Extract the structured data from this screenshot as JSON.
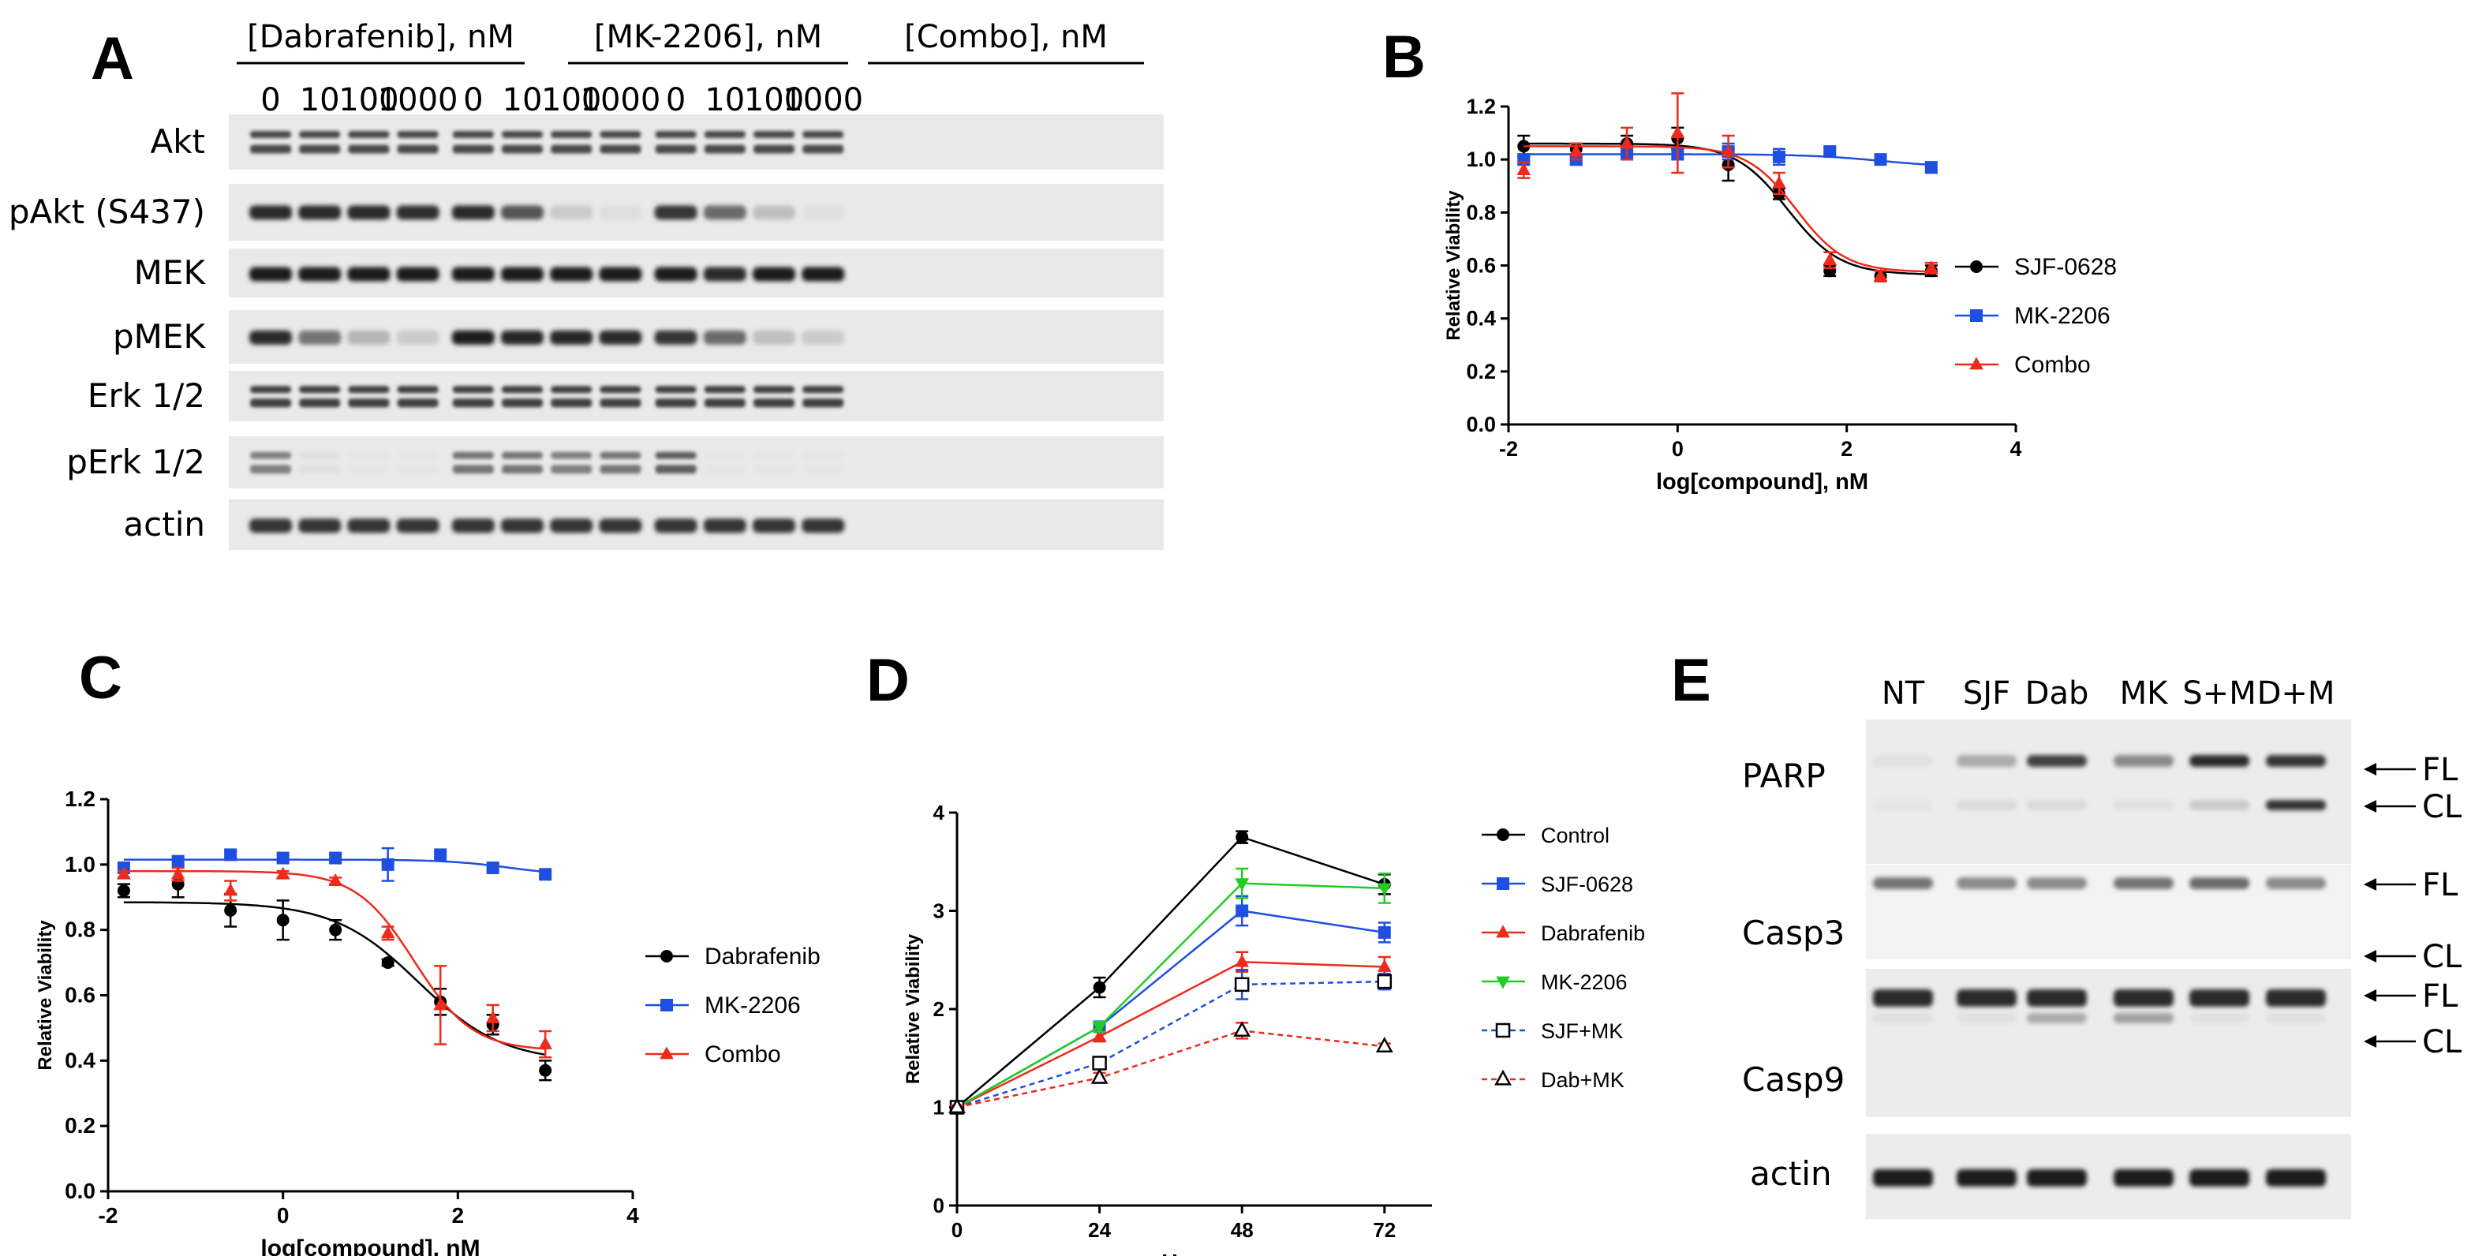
{
  "panelA": {
    "letter": "A",
    "groups": [
      "[Dabrafenib], nM",
      "[MK-2206], nM",
      "[Combo], nM"
    ],
    "doses": [
      "0",
      "10",
      "100",
      "1000"
    ],
    "rows": [
      {
        "label": "Akt",
        "intensity": [
          0.75,
          0.75,
          0.75,
          0.75,
          0.75,
          0.75,
          0.75,
          0.75,
          0.75,
          0.75,
          0.75,
          0.75
        ]
      },
      {
        "label": "pAkt (S437)",
        "intensity": [
          0.9,
          0.9,
          0.9,
          0.88,
          0.9,
          0.7,
          0.15,
          0.06,
          0.85,
          0.6,
          0.2,
          0.05
        ]
      },
      {
        "label": "MEK",
        "intensity": [
          0.95,
          0.95,
          0.95,
          0.95,
          0.95,
          0.95,
          0.95,
          0.95,
          0.95,
          0.9,
          0.95,
          0.95
        ]
      },
      {
        "label": "pMEK",
        "intensity": [
          0.9,
          0.55,
          0.25,
          0.15,
          0.95,
          0.92,
          0.92,
          0.9,
          0.85,
          0.6,
          0.2,
          0.15
        ]
      },
      {
        "label": "Erk 1/2",
        "intensity": [
          0.8,
          0.8,
          0.8,
          0.8,
          0.8,
          0.8,
          0.8,
          0.8,
          0.8,
          0.8,
          0.8,
          0.8
        ]
      },
      {
        "label": "pErk 1/2",
        "intensity": [
          0.5,
          0.05,
          0.03,
          0.03,
          0.55,
          0.55,
          0.5,
          0.55,
          0.65,
          0.03,
          0.03,
          0.03
        ]
      },
      {
        "label": "actin",
        "intensity": [
          0.85,
          0.85,
          0.85,
          0.85,
          0.85,
          0.85,
          0.85,
          0.85,
          0.85,
          0.85,
          0.85,
          0.85
        ]
      }
    ]
  },
  "panelB": {
    "letter": "B",
    "chart_data": {
      "type": "line",
      "xlabel": "log[compound], nM",
      "ylabel": "Relative Viability",
      "xlim": [
        -2,
        4
      ],
      "ylim": [
        0,
        1.2
      ],
      "xticks": [
        "-2",
        "0",
        "2",
        "4"
      ],
      "yticks": [
        "0.0",
        "0.2",
        "0.4",
        "0.6",
        "0.8",
        "1.0",
        "1.2"
      ],
      "x": [
        -1.82,
        -1.2,
        -0.6,
        0,
        0.6,
        1.2,
        1.8,
        2.4,
        3.0
      ],
      "series": [
        {
          "name": "SJF-0628",
          "color": "#000000",
          "marker": "circle",
          "values": [
            1.05,
            1.04,
            1.06,
            1.08,
            0.98,
            0.87,
            0.58,
            0.56,
            0.58
          ],
          "err": [
            0.04,
            0.02,
            0.03,
            0.04,
            0.06,
            0.02,
            0.02,
            0.02,
            0.02
          ],
          "fit": {
            "top": 1.06,
            "bottom": 0.565,
            "logec50": 1.3,
            "hill": 1.4
          }
        },
        {
          "name": "MK-2206",
          "color": "#1f4fe0",
          "marker": "square",
          "values": [
            1.0,
            1.0,
            1.02,
            1.02,
            1.03,
            1.01,
            1.03,
            1.0,
            0.97
          ],
          "err": [
            0.02,
            0.02,
            0.02,
            0.02,
            0.03,
            0.03,
            0.01,
            0.01,
            0.02
          ],
          "fit": {
            "top": 1.02,
            "bottom": 0.97,
            "logec50": 2.4,
            "hill": 1.0
          }
        },
        {
          "name": "Combo",
          "color": "#ee2a1b",
          "marker": "triangle",
          "values": [
            0.96,
            1.03,
            1.06,
            1.1,
            1.03,
            0.91,
            0.62,
            0.56,
            0.59
          ],
          "err": [
            0.03,
            0.03,
            0.06,
            0.15,
            0.06,
            0.04,
            0.03,
            0.02,
            0.02
          ],
          "fit": {
            "top": 1.05,
            "bottom": 0.575,
            "logec50": 1.4,
            "hill": 1.5
          }
        }
      ]
    }
  },
  "panelC": {
    "letter": "C",
    "chart_data": {
      "type": "line",
      "xlabel": "log[compound], nM",
      "ylabel": "Relative Viability",
      "xlim": [
        -2,
        4
      ],
      "ylim": [
        0,
        1.2
      ],
      "xticks": [
        "-2",
        "0",
        "2",
        "4"
      ],
      "yticks": [
        "0.0",
        "0.2",
        "0.4",
        "0.6",
        "0.8",
        "1.0",
        "1.2"
      ],
      "x": [
        -1.82,
        -1.2,
        -0.6,
        0,
        0.6,
        1.2,
        1.8,
        2.4,
        3.0
      ],
      "series": [
        {
          "name": "Dabrafenib",
          "color": "#000000",
          "marker": "circle",
          "values": [
            0.92,
            0.94,
            0.86,
            0.83,
            0.8,
            0.7,
            0.58,
            0.51,
            0.37
          ],
          "err": [
            0.02,
            0.04,
            0.05,
            0.06,
            0.03,
            0.01,
            0.04,
            0.03,
            0.03
          ],
          "fit": {
            "top": 0.885,
            "bottom": 0.395,
            "logec50": 1.55,
            "hill": 0.9
          }
        },
        {
          "name": "MK-2206",
          "color": "#1f4fe0",
          "marker": "square",
          "values": [
            0.99,
            1.01,
            1.03,
            1.02,
            1.02,
            1.0,
            1.03,
            0.99,
            0.97
          ],
          "err": [
            0.01,
            0.01,
            0.01,
            0.01,
            0.01,
            0.05,
            0.01,
            0.01,
            0.01
          ],
          "fit": {
            "top": 1.015,
            "bottom": 0.965,
            "logec50": 2.6,
            "hill": 1.2
          }
        },
        {
          "name": "Combo",
          "color": "#ee2a1b",
          "marker": "triangle",
          "values": [
            0.97,
            0.97,
            0.92,
            0.97,
            0.95,
            0.79,
            0.57,
            0.53,
            0.45
          ],
          "err": [
            0.01,
            0.02,
            0.03,
            0.01,
            0.01,
            0.02,
            0.12,
            0.04,
            0.04
          ],
          "fit": {
            "top": 0.98,
            "bottom": 0.43,
            "logec50": 1.5,
            "hill": 1.3
          }
        }
      ]
    }
  },
  "panelD": {
    "letter": "D",
    "chart_data": {
      "type": "line",
      "xlabel": "Hours",
      "ylabel": "Relative Viability",
      "xlim": [
        0,
        80
      ],
      "ylim": [
        0,
        4
      ],
      "xticks": [
        "0",
        "24",
        "48",
        "72"
      ],
      "xtick_values": [
        0,
        24,
        48,
        72
      ],
      "yticks": [
        "0",
        "1",
        "2",
        "3",
        "4"
      ],
      "x": [
        0,
        24,
        48,
        72
      ],
      "series": [
        {
          "name": "Control",
          "color": "#000000",
          "marker": "circle",
          "dashed": false,
          "values": [
            1.0,
            2.22,
            3.75,
            3.27
          ],
          "err": [
            0.02,
            0.1,
            0.06,
            0.1
          ]
        },
        {
          "name": "SJF-0628",
          "color": "#1f4fe0",
          "marker": "square",
          "dashed": false,
          "values": [
            1.0,
            1.82,
            3.0,
            2.78
          ],
          "err": [
            0.02,
            0.05,
            0.15,
            0.1
          ]
        },
        {
          "name": "Dabrafenib",
          "color": "#ee2a1b",
          "marker": "triangle",
          "dashed": false,
          "values": [
            1.0,
            1.72,
            2.48,
            2.43
          ],
          "err": [
            0.02,
            0.05,
            0.1,
            0.1
          ]
        },
        {
          "name": "MK-2206",
          "color": "#22cc22",
          "marker": "triangle-down",
          "dashed": false,
          "values": [
            1.0,
            1.82,
            3.28,
            3.23
          ],
          "err": [
            0.02,
            0.05,
            0.15,
            0.15
          ]
        },
        {
          "name": "SJF+MK",
          "color": "#1f4fe0",
          "marker": "open-square",
          "dashed": true,
          "values": [
            1.0,
            1.45,
            2.25,
            2.28
          ],
          "err": [
            0.02,
            0.05,
            0.15,
            0.08
          ]
        },
        {
          "name": "Dab+MK",
          "color": "#ee2a1b",
          "marker": "open-triangle",
          "dashed": true,
          "values": [
            1.0,
            1.3,
            1.78,
            1.62
          ],
          "err": [
            0.02,
            0.05,
            0.08,
            0.03
          ]
        }
      ]
    }
  },
  "panelE": {
    "letter": "E",
    "lanes": [
      "NT",
      "SJF",
      "Dab",
      "MK",
      "S+M",
      "D+M"
    ],
    "blots": [
      {
        "label": "PARP",
        "fl": [
          0.05,
          0.3,
          0.8,
          0.45,
          0.9,
          0.85
        ],
        "cl": [
          0.03,
          0.08,
          0.08,
          0.05,
          0.15,
          0.85
        ],
        "markers": [
          "FL",
          "CL"
        ]
      },
      {
        "label": "Casp3",
        "fl": [
          0.55,
          0.45,
          0.45,
          0.55,
          0.6,
          0.45
        ],
        "cl": [
          0,
          0,
          0,
          0,
          0,
          0
        ],
        "markers": [
          "FL",
          "CL"
        ]
      },
      {
        "label": "Casp9",
        "fl": [
          0.9,
          0.9,
          0.9,
          0.9,
          0.9,
          0.9
        ],
        "cl": [
          0.05,
          0.05,
          0.3,
          0.35,
          0.05,
          0.05
        ],
        "markers": [
          "FL",
          "CL"
        ]
      },
      {
        "label": "actin",
        "fl": [
          0.95,
          0.95,
          0.95,
          0.95,
          0.95,
          0.95
        ],
        "cl": [
          0,
          0,
          0,
          0,
          0,
          0
        ],
        "markers": []
      }
    ]
  }
}
